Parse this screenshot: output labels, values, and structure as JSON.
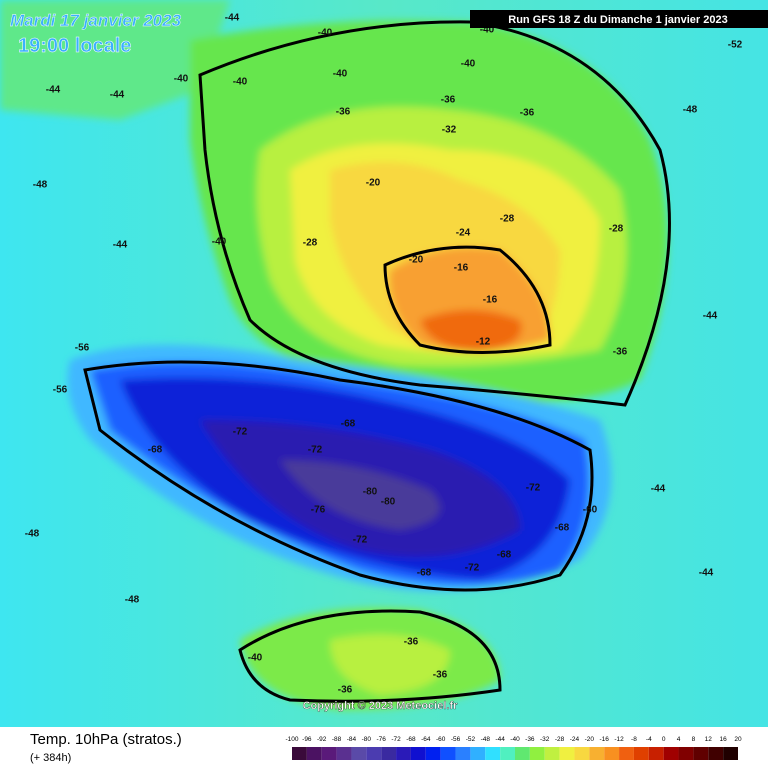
{
  "header": {
    "date": "Mardi 17 janvier 2023",
    "time": "19:00 locale",
    "run": "Run GFS 18 Z du Dimanche 1 janvier 2023"
  },
  "footer": {
    "title": "Temp. 10hPa (stratos.)",
    "lead": "(+ 384h)",
    "copyright": "Copyright © 2023 Meteociel.fr"
  },
  "legend": {
    "ticks": [
      -100,
      -96,
      -92,
      -88,
      -84,
      -80,
      -76,
      -72,
      -68,
      -64,
      -60,
      -56,
      -52,
      -48,
      -44,
      -40,
      -36,
      -32,
      -28,
      -24,
      -20,
      -16,
      -12,
      -8,
      -4,
      0,
      4,
      8,
      12,
      16,
      20
    ],
    "colors": [
      "#3a0a3a",
      "#4b1262",
      "#5a1a7a",
      "#5a3090",
      "#5a4aa8",
      "#4b3cb0",
      "#3a2aa0",
      "#2a1ab8",
      "#1010d0",
      "#0020f0",
      "#1050ff",
      "#2a80ff",
      "#30b0ff",
      "#30e0ff",
      "#50f0c0",
      "#60e870",
      "#90f040",
      "#c0f040",
      "#f0f040",
      "#f8d840",
      "#f8b030",
      "#f89020",
      "#f06010",
      "#e04000",
      "#c82000",
      "#a00000",
      "#800000",
      "#600000",
      "#400000",
      "#200000"
    ]
  },
  "contour_labels": [
    -44,
    -40,
    -40,
    -40,
    -40,
    -40,
    -40,
    -44,
    -44,
    -36,
    -36,
    -36,
    -32,
    -48,
    -52,
    -48,
    -44,
    -40,
    -28,
    -20,
    -24,
    -28,
    -28,
    -16,
    -12,
    -20,
    -16,
    -36,
    -56,
    -56,
    -68,
    -72,
    -72,
    -68,
    -80,
    -80,
    -76,
    -72,
    -72,
    -68,
    -60,
    -68,
    -72,
    -68,
    -36,
    -36,
    -36,
    -40,
    -48,
    -48,
    -44,
    -44,
    -44
  ]
}
